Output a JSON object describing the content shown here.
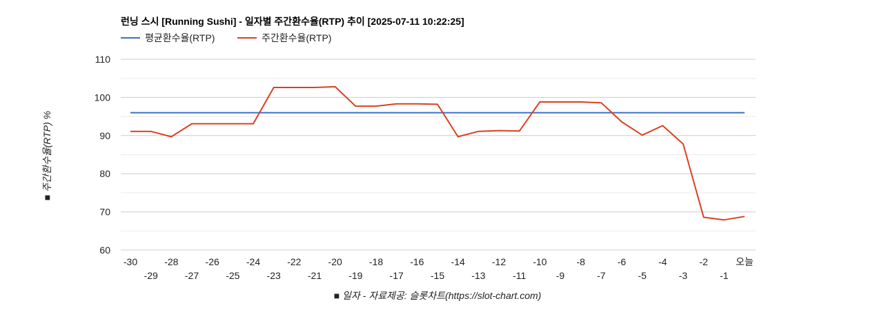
{
  "chart_data": {
    "type": "line",
    "title": "런닝 스시 [Running Sushi] - 일자별 주간환수율(RTP) 추이 [2025-07-11 10:22:25]",
    "xlabel": "■ 일자 - 자료제공: 슬롯차트(https://slot-chart.com)",
    "ylabel": "■ 주간환수율(RTP) %",
    "ylim": [
      60,
      110
    ],
    "yticks": [
      "60",
      "70",
      "80",
      "90",
      "100",
      "110"
    ],
    "grid": true,
    "legend_position": "top-left",
    "categories": [
      "-30",
      "-29",
      "-28",
      "-27",
      "-26",
      "-25",
      "-24",
      "-23",
      "-22",
      "-21",
      "-20",
      "-19",
      "-18",
      "-17",
      "-16",
      "-15",
      "-14",
      "-13",
      "-12",
      "-11",
      "-10",
      "-9",
      "-8",
      "-7",
      "-6",
      "-5",
      "-4",
      "-3",
      "-2",
      "-1",
      "오늘"
    ],
    "series": [
      {
        "name": "평균환수율(RTP)",
        "color": "#3a6fc4",
        "values": [
          96,
          96,
          96,
          96,
          96,
          96,
          96,
          96,
          96,
          96,
          96,
          96,
          96,
          96,
          96,
          96,
          96,
          96,
          96,
          96,
          96,
          96,
          96,
          96,
          96,
          96,
          96,
          96,
          96,
          96,
          96
        ]
      },
      {
        "name": "주간환수율(RTP)",
        "color": "#d9401d",
        "values": [
          91.1,
          91.1,
          89.7,
          93.1,
          93.1,
          93.1,
          93.1,
          102.6,
          102.6,
          102.6,
          102.8,
          97.7,
          97.7,
          98.3,
          98.3,
          98.2,
          89.7,
          91.1,
          91.3,
          91.2,
          98.8,
          98.8,
          98.8,
          98.6,
          93.6,
          90.1,
          92.6,
          87.8,
          68.6,
          67.9,
          68.8
        ]
      }
    ]
  }
}
